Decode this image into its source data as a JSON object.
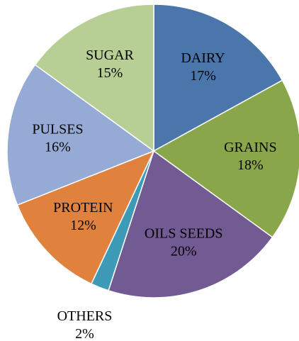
{
  "chart_data": {
    "type": "pie",
    "categories": [
      "DAIRY",
      "GRAINS",
      "OILS SEEDS",
      "OTHERS",
      "PROTEIN",
      "PULSES",
      "SUGAR"
    ],
    "values": [
      17,
      18,
      20,
      2,
      12,
      16,
      15
    ],
    "value_labels": [
      "17%",
      "18%",
      "20%",
      "2%",
      "12%",
      "16%",
      "15%"
    ],
    "colors": [
      "#4a76ab",
      "#8aa64a",
      "#725a92",
      "#3e9bb8",
      "#e0823e",
      "#95aad4",
      "#b7cf94"
    ]
  }
}
